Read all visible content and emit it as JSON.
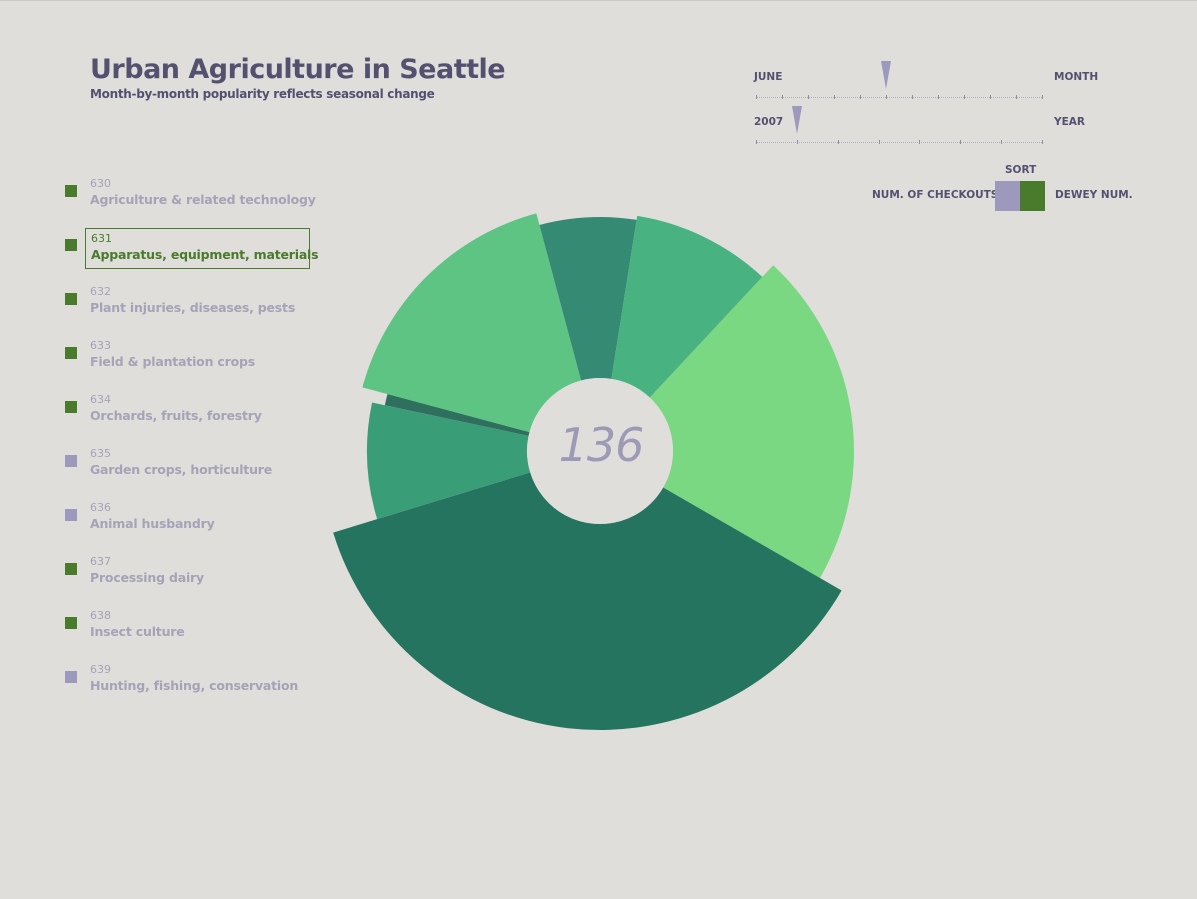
{
  "header": {
    "title": "Urban Agriculture in Seattle",
    "subtitle": "Month-by-month popularity reflects seasonal change"
  },
  "controls": {
    "month": {
      "value": "JUNE",
      "label": "MONTH",
      "selected_index": 5,
      "count": 12
    },
    "year": {
      "value": "2007",
      "label": "YEAR",
      "selected_index": 1,
      "count": 8
    },
    "sort": {
      "title": "SORT",
      "left_label": "NUM. OF CHECKOUTS",
      "right_label": "DEWEY NUM.",
      "left_color": "#9c99bd",
      "right_color": "#4a7a2b",
      "active": "DEWEY NUM."
    }
  },
  "legend": {
    "active_color": "#4a7a2b",
    "inactive_color": "#9c99bd",
    "items": [
      {
        "num": "630",
        "label": "Agriculture & related technology",
        "active": true,
        "selected": false
      },
      {
        "num": "631",
        "label": "Apparatus, equipment, materials",
        "active": true,
        "selected": true
      },
      {
        "num": "632",
        "label": "Plant injuries, diseases, pests",
        "active": true,
        "selected": false
      },
      {
        "num": "633",
        "label": "Field & plantation crops",
        "active": true,
        "selected": false
      },
      {
        "num": "634",
        "label": "Orchards, fruits, forestry",
        "active": true,
        "selected": false
      },
      {
        "num": "635",
        "label": "Garden crops, horticulture",
        "active": false,
        "selected": false
      },
      {
        "num": "636",
        "label": "Animal husbandry",
        "active": false,
        "selected": false
      },
      {
        "num": "637",
        "label": "Processing dairy",
        "active": true,
        "selected": false
      },
      {
        "num": "638",
        "label": "Insect culture",
        "active": true,
        "selected": false
      },
      {
        "num": "639",
        "label": "Hunting, fishing, conservation",
        "active": false,
        "selected": false
      }
    ]
  },
  "chart_data": {
    "type": "pie",
    "center_value": "136",
    "slices": [
      {
        "start_deg": 0,
        "end_deg": 9,
        "radius": 234,
        "color": "#358a73"
      },
      {
        "start_deg": 9,
        "end_deg": 43,
        "radius": 238,
        "color": "#48b380"
      },
      {
        "start_deg": 43,
        "end_deg": 120,
        "radius": 254,
        "color": "#7ad782"
      },
      {
        "start_deg": 120,
        "end_deg": 253,
        "radius": 279,
        "color": "#247460"
      },
      {
        "start_deg": 253,
        "end_deg": 282,
        "radius": 233,
        "color": "#399d78"
      },
      {
        "start_deg": 282,
        "end_deg": 285,
        "radius": 220,
        "color": "#2e6f5d"
      },
      {
        "start_deg": 285,
        "end_deg": 345,
        "radius": 246,
        "color": "#5ec483"
      },
      {
        "start_deg": 345,
        "end_deg": 360,
        "radius": 234,
        "color": "#358a73"
      }
    ]
  }
}
